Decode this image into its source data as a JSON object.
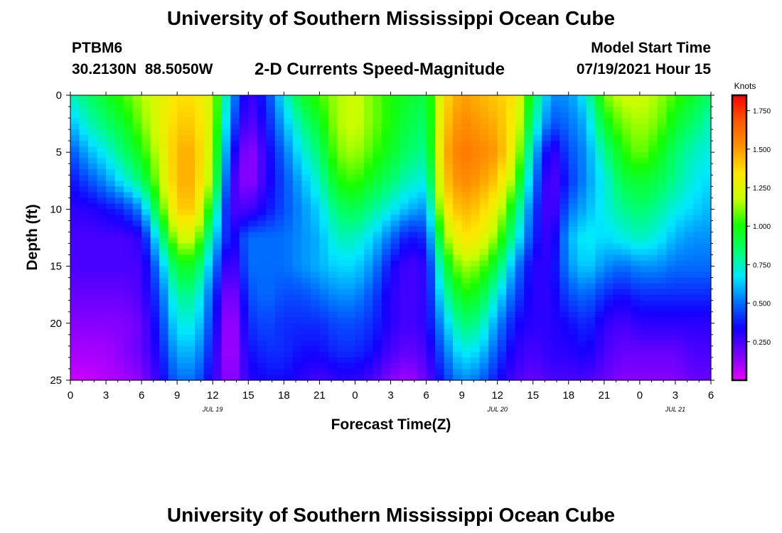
{
  "header": {
    "title": "University of Southern Mississippi Ocean Cube",
    "station_id": "PTBM6",
    "station_coords": "30.2130N  88.5050W",
    "subtitle": "2-D Currents Speed-Magnitude",
    "model_start_label": "Model Start Time",
    "model_start_value": "07/19/2021 Hour 15"
  },
  "footer": {
    "title": "University of Southern Mississippi Ocean Cube"
  },
  "chart_data": {
    "type": "heatmap",
    "title": "2-D Currents Speed-Magnitude",
    "xlabel": "Forecast Time(Z)",
    "ylabel": "Depth (ft)",
    "x_ticks": [
      "0",
      "3",
      "6",
      "9",
      "12",
      "15",
      "18",
      "21",
      "0",
      "3",
      "6",
      "9",
      "12",
      "15",
      "18",
      "21",
      "0",
      "3",
      "6"
    ],
    "x_range_hours": [
      0,
      54
    ],
    "date_labels": [
      {
        "text": "JUL 19",
        "hour": 12
      },
      {
        "text": "JUL 20",
        "hour": 36
      },
      {
        "text": "JUL 21",
        "hour": 51
      }
    ],
    "y_ticks": [
      "0",
      "5",
      "10",
      "15",
      "20",
      "25"
    ],
    "y_range": [
      0,
      25
    ],
    "y_inverted": true,
    "colorbar": {
      "label": "Knots",
      "ticks": [
        "0.250",
        "0.500",
        "0.750",
        "1.000",
        "1.250",
        "1.500",
        "1.750"
      ],
      "range": [
        0.0,
        1.85
      ],
      "colors": [
        "#e800ff",
        "#7a00ff",
        "#1400ff",
        "#0070ff",
        "#00e8ff",
        "#00ff70",
        "#14ff00",
        "#c8ff00",
        "#ffe600",
        "#ff9400",
        "#ff5a00",
        "#ff0000"
      ]
    },
    "depths_ft": [
      0,
      2.5,
      5,
      7.5,
      10,
      12.5,
      15,
      17.5,
      20,
      22.5,
      25
    ],
    "times_hours": [
      0,
      1.5,
      3,
      4.5,
      6,
      7.5,
      9,
      10.5,
      12,
      13.5,
      15,
      16.5,
      18,
      19.5,
      21,
      22.5,
      24,
      25.5,
      27,
      28.5,
      30,
      31.5,
      33,
      34.5,
      36,
      37.5,
      39,
      40.5,
      42,
      43.5,
      45,
      46.5,
      48,
      49.5,
      51,
      52.5,
      54
    ],
    "speed_knots": [
      [
        0.75,
        0.85,
        0.95,
        1.05,
        1.15,
        1.25,
        1.35,
        1.35,
        1.2,
        0.6,
        0.25,
        0.4,
        0.7,
        0.95,
        1.05,
        1.15,
        1.2,
        1.1,
        1.0,
        0.95,
        0.9,
        1.35,
        1.5,
        1.45,
        1.4,
        1.35,
        0.9,
        0.55,
        0.55,
        0.7,
        1.1,
        1.2,
        1.2,
        1.15,
        1.05,
        0.95,
        0.85
      ],
      [
        0.6,
        0.75,
        0.85,
        0.95,
        1.1,
        1.25,
        1.4,
        1.4,
        1.2,
        0.5,
        0.2,
        0.35,
        0.6,
        0.8,
        0.95,
        1.15,
        1.2,
        1.1,
        1.0,
        0.9,
        0.85,
        1.4,
        1.55,
        1.5,
        1.45,
        1.3,
        0.8,
        0.45,
        0.5,
        0.6,
        0.95,
        1.1,
        1.15,
        1.1,
        0.95,
        0.85,
        0.75
      ],
      [
        0.45,
        0.6,
        0.7,
        0.85,
        1.0,
        1.2,
        1.45,
        1.45,
        1.15,
        0.4,
        0.1,
        0.3,
        0.5,
        0.7,
        0.85,
        1.1,
        1.15,
        1.05,
        0.95,
        0.85,
        0.8,
        1.45,
        1.6,
        1.55,
        1.5,
        1.25,
        0.65,
        0.25,
        0.45,
        0.55,
        0.8,
        1.0,
        1.1,
        1.0,
        0.85,
        0.75,
        0.7
      ],
      [
        0.35,
        0.45,
        0.55,
        0.7,
        0.85,
        1.15,
        1.45,
        1.45,
        1.1,
        0.3,
        0.1,
        0.3,
        0.45,
        0.6,
        0.75,
        1.0,
        1.05,
        0.95,
        0.85,
        0.75,
        0.7,
        1.4,
        1.55,
        1.5,
        1.4,
        1.1,
        0.55,
        0.2,
        0.4,
        0.55,
        0.7,
        0.9,
        0.95,
        0.9,
        0.8,
        0.7,
        0.65
      ],
      [
        0.3,
        0.3,
        0.35,
        0.4,
        0.55,
        1.0,
        1.4,
        1.4,
        0.9,
        0.25,
        0.25,
        0.35,
        0.45,
        0.55,
        0.65,
        0.85,
        0.9,
        0.8,
        0.7,
        0.6,
        0.55,
        1.3,
        1.45,
        1.4,
        1.25,
        0.9,
        0.45,
        0.2,
        0.5,
        0.6,
        0.7,
        0.8,
        0.85,
        0.8,
        0.7,
        0.65,
        0.6
      ],
      [
        0.25,
        0.25,
        0.25,
        0.25,
        0.3,
        0.75,
        1.2,
        1.2,
        0.7,
        0.3,
        0.5,
        0.5,
        0.5,
        0.55,
        0.6,
        0.75,
        0.75,
        0.65,
        0.5,
        0.35,
        0.4,
        1.1,
        1.35,
        1.3,
        1.1,
        0.75,
        0.4,
        0.25,
        0.6,
        0.7,
        0.65,
        0.7,
        0.75,
        0.7,
        0.6,
        0.55,
        0.55
      ],
      [
        0.25,
        0.25,
        0.25,
        0.25,
        0.25,
        0.55,
        0.95,
        0.95,
        0.55,
        0.2,
        0.5,
        0.5,
        0.5,
        0.55,
        0.6,
        0.65,
        0.65,
        0.55,
        0.35,
        0.25,
        0.3,
        0.9,
        1.15,
        1.1,
        0.9,
        0.55,
        0.3,
        0.3,
        0.55,
        0.65,
        0.55,
        0.5,
        0.55,
        0.55,
        0.5,
        0.5,
        0.5
      ],
      [
        0.2,
        0.2,
        0.2,
        0.2,
        0.25,
        0.45,
        0.8,
        0.8,
        0.45,
        0.1,
        0.45,
        0.5,
        0.45,
        0.45,
        0.5,
        0.55,
        0.55,
        0.45,
        0.3,
        0.25,
        0.3,
        0.75,
        1.0,
        0.95,
        0.7,
        0.45,
        0.3,
        0.3,
        0.45,
        0.5,
        0.4,
        0.35,
        0.4,
        0.4,
        0.4,
        0.4,
        0.4
      ],
      [
        0.15,
        0.15,
        0.15,
        0.15,
        0.2,
        0.4,
        0.7,
        0.7,
        0.4,
        0.05,
        0.4,
        0.45,
        0.4,
        0.4,
        0.4,
        0.45,
        0.45,
        0.4,
        0.3,
        0.25,
        0.3,
        0.6,
        0.85,
        0.8,
        0.55,
        0.35,
        0.3,
        0.3,
        0.35,
        0.4,
        0.3,
        0.25,
        0.3,
        0.3,
        0.3,
        0.3,
        0.3
      ],
      [
        0.1,
        0.1,
        0.1,
        0.15,
        0.2,
        0.35,
        0.6,
        0.6,
        0.35,
        0.05,
        0.35,
        0.4,
        0.4,
        0.35,
        0.35,
        0.4,
        0.4,
        0.35,
        0.25,
        0.2,
        0.25,
        0.5,
        0.7,
        0.65,
        0.45,
        0.3,
        0.25,
        0.3,
        0.3,
        0.35,
        0.25,
        0.2,
        0.2,
        0.2,
        0.2,
        0.25,
        0.25
      ],
      [
        0.05,
        0.05,
        0.08,
        0.1,
        0.15,
        0.3,
        0.5,
        0.5,
        0.3,
        0.1,
        0.3,
        0.35,
        0.35,
        0.3,
        0.25,
        0.3,
        0.3,
        0.25,
        0.15,
        0.1,
        0.2,
        0.4,
        0.55,
        0.5,
        0.35,
        0.25,
        0.2,
        0.25,
        0.25,
        0.25,
        0.2,
        0.15,
        0.15,
        0.15,
        0.15,
        0.2,
        0.2
      ]
    ]
  }
}
